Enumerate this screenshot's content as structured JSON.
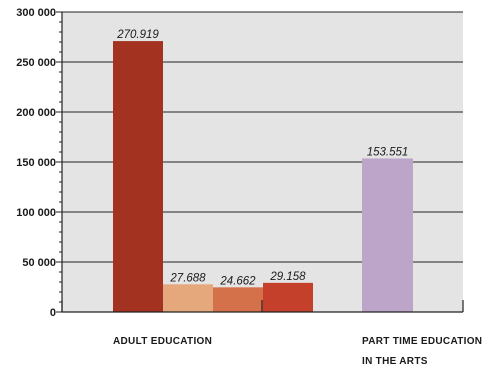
{
  "chart_data": {
    "type": "bar",
    "ylim": [
      0,
      300000
    ],
    "yticks": [
      {
        "value": 0,
        "label": "0"
      },
      {
        "value": 50000,
        "label": "50 000"
      },
      {
        "value": 100000,
        "label": "100 000"
      },
      {
        "value": 150000,
        "label": "150 000"
      },
      {
        "value": 200000,
        "label": "200 000"
      },
      {
        "value": 250000,
        "label": "250 000"
      },
      {
        "value": 300000,
        "label": "300 000"
      }
    ],
    "grid": true,
    "plot_background": "#e4e4e4",
    "groups": [
      {
        "category_lines": [
          "ADULT EDUCATION"
        ],
        "bars": [
          {
            "value": 270919,
            "label": "270.919",
            "color": "#a33220"
          },
          {
            "value": 27688,
            "label": "27.688",
            "color": "#e5a87c"
          },
          {
            "value": 24662,
            "label": "24.662",
            "color": "#d4704a"
          },
          {
            "value": 29158,
            "label": "29.158",
            "color": "#c5402b"
          }
        ]
      },
      {
        "category_lines": [
          "PART TIME EDUCATION",
          "IN THE ARTS"
        ],
        "bars": [
          {
            "value": 153551,
            "label": "153.551",
            "color": "#bda5c9"
          }
        ]
      }
    ]
  }
}
